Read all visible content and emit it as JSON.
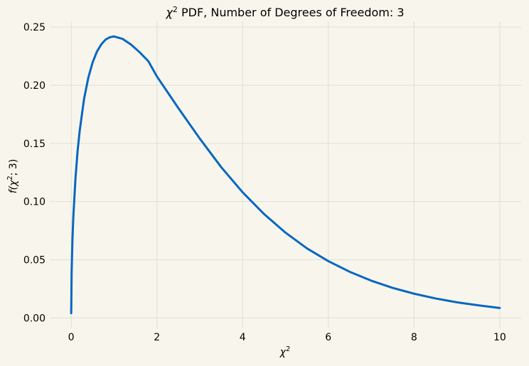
{
  "colors": {
    "background": "#f8f6ec",
    "grid": "#e0e0d6",
    "series": "#0567c2"
  },
  "chart_data": {
    "type": "line",
    "title_math": "χ",
    "title_sup": "2",
    "title_rest": " PDF, Number of Degrees of Freedom: 3",
    "xlabel_math": "χ",
    "xlabel_sup": "2",
    "ylabel_prefix": "f(",
    "ylabel_chi": "χ",
    "ylabel_sup": "2",
    "ylabel_suffix": "; 3)",
    "xlim": [
      -0.5,
      10.5
    ],
    "ylim": [
      -0.009,
      0.255
    ],
    "grid": true,
    "x_ticks": [
      0,
      2,
      4,
      6,
      8,
      10
    ],
    "x_tick_labels": [
      "0",
      "2",
      "4",
      "6",
      "8",
      "10"
    ],
    "y_ticks": [
      0.0,
      0.05,
      0.1,
      0.15,
      0.2,
      0.25
    ],
    "y_tick_labels": [
      "0.00",
      "0.05",
      "0.10",
      "0.15",
      "0.20",
      "0.25"
    ],
    "series": [
      {
        "x": [
          0.0001,
          0.01,
          0.03,
          0.05,
          0.1,
          0.15,
          0.2,
          0.3,
          0.4,
          0.5,
          0.6,
          0.7,
          0.8,
          0.9,
          1.0,
          1.2,
          1.4,
          1.6,
          1.8,
          2.0,
          2.5,
          3.0,
          3.5,
          4.0,
          4.5,
          5.0,
          5.5,
          6.0,
          6.5,
          7.0,
          7.5,
          8.0,
          8.5,
          9.0,
          9.5,
          10.0
        ],
        "y": [
          0.004,
          0.0397,
          0.0681,
          0.0872,
          0.12,
          0.1439,
          0.1614,
          0.1883,
          0.2066,
          0.2197,
          0.2289,
          0.2351,
          0.2392,
          0.2413,
          0.242,
          0.2399,
          0.2349,
          0.2283,
          0.2207,
          0.2076,
          0.1804,
          0.1542,
          0.1296,
          0.108,
          0.0893,
          0.0733,
          0.0598,
          0.0488,
          0.0396,
          0.032,
          0.0258,
          0.0208,
          0.0167,
          0.0134,
          0.0108,
          0.0085
        ]
      }
    ]
  }
}
